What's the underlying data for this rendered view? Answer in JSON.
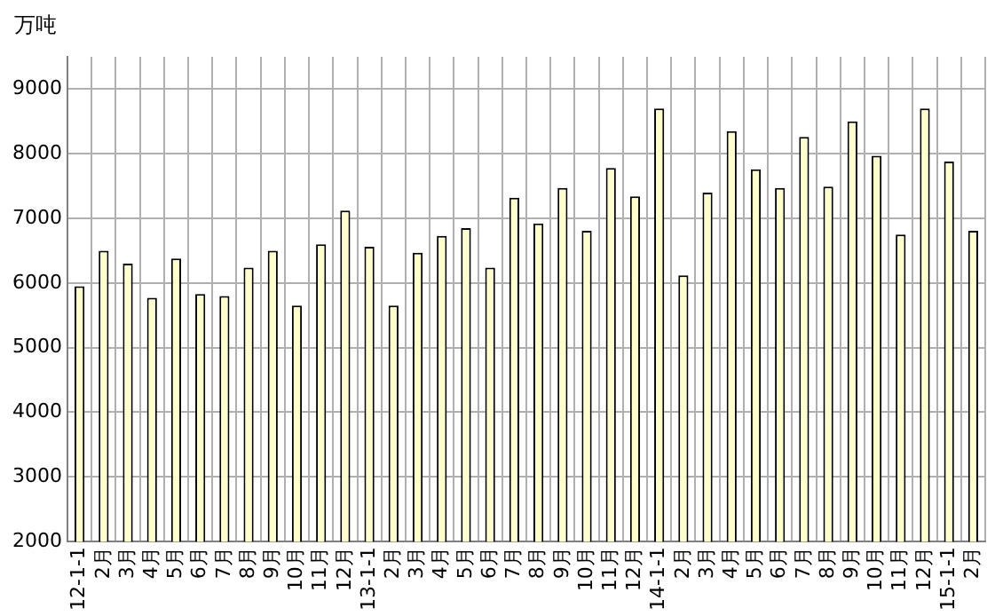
{
  "chart_data": {
    "type": "bar",
    "ylabel": "万吨",
    "categories": [
      "12-1-1",
      "2月",
      "3月",
      "4月",
      "5月",
      "6月",
      "7月",
      "8月",
      "9月",
      "10月",
      "11月",
      "12月",
      "13-1-1",
      "2月",
      "3月",
      "4月",
      "5月",
      "6月",
      "7月",
      "8月",
      "9月",
      "10月",
      "11月",
      "12月",
      "14-1-1",
      "2月",
      "3月",
      "4月",
      "5月",
      "6月",
      "7月",
      "8月",
      "9月",
      "10月",
      "11月",
      "12月",
      "15-1-1",
      "2月"
    ],
    "values": [
      5950,
      6500,
      6300,
      5770,
      6380,
      5830,
      5800,
      6240,
      6500,
      5650,
      6600,
      7120,
      6560,
      5650,
      6470,
      6730,
      6850,
      6240,
      7320,
      6920,
      7470,
      6810,
      7780,
      7340,
      8700,
      6120,
      7400,
      8350,
      7760,
      7470,
      8260,
      7490,
      8500,
      7970,
      6750,
      8700,
      7880,
      6810
    ],
    "color": "#ffffcc",
    "ylim": [
      2000,
      9500
    ],
    "yticks": [
      2000,
      3000,
      4000,
      5000,
      6000,
      7000,
      8000,
      9000
    ],
    "grid": true
  }
}
